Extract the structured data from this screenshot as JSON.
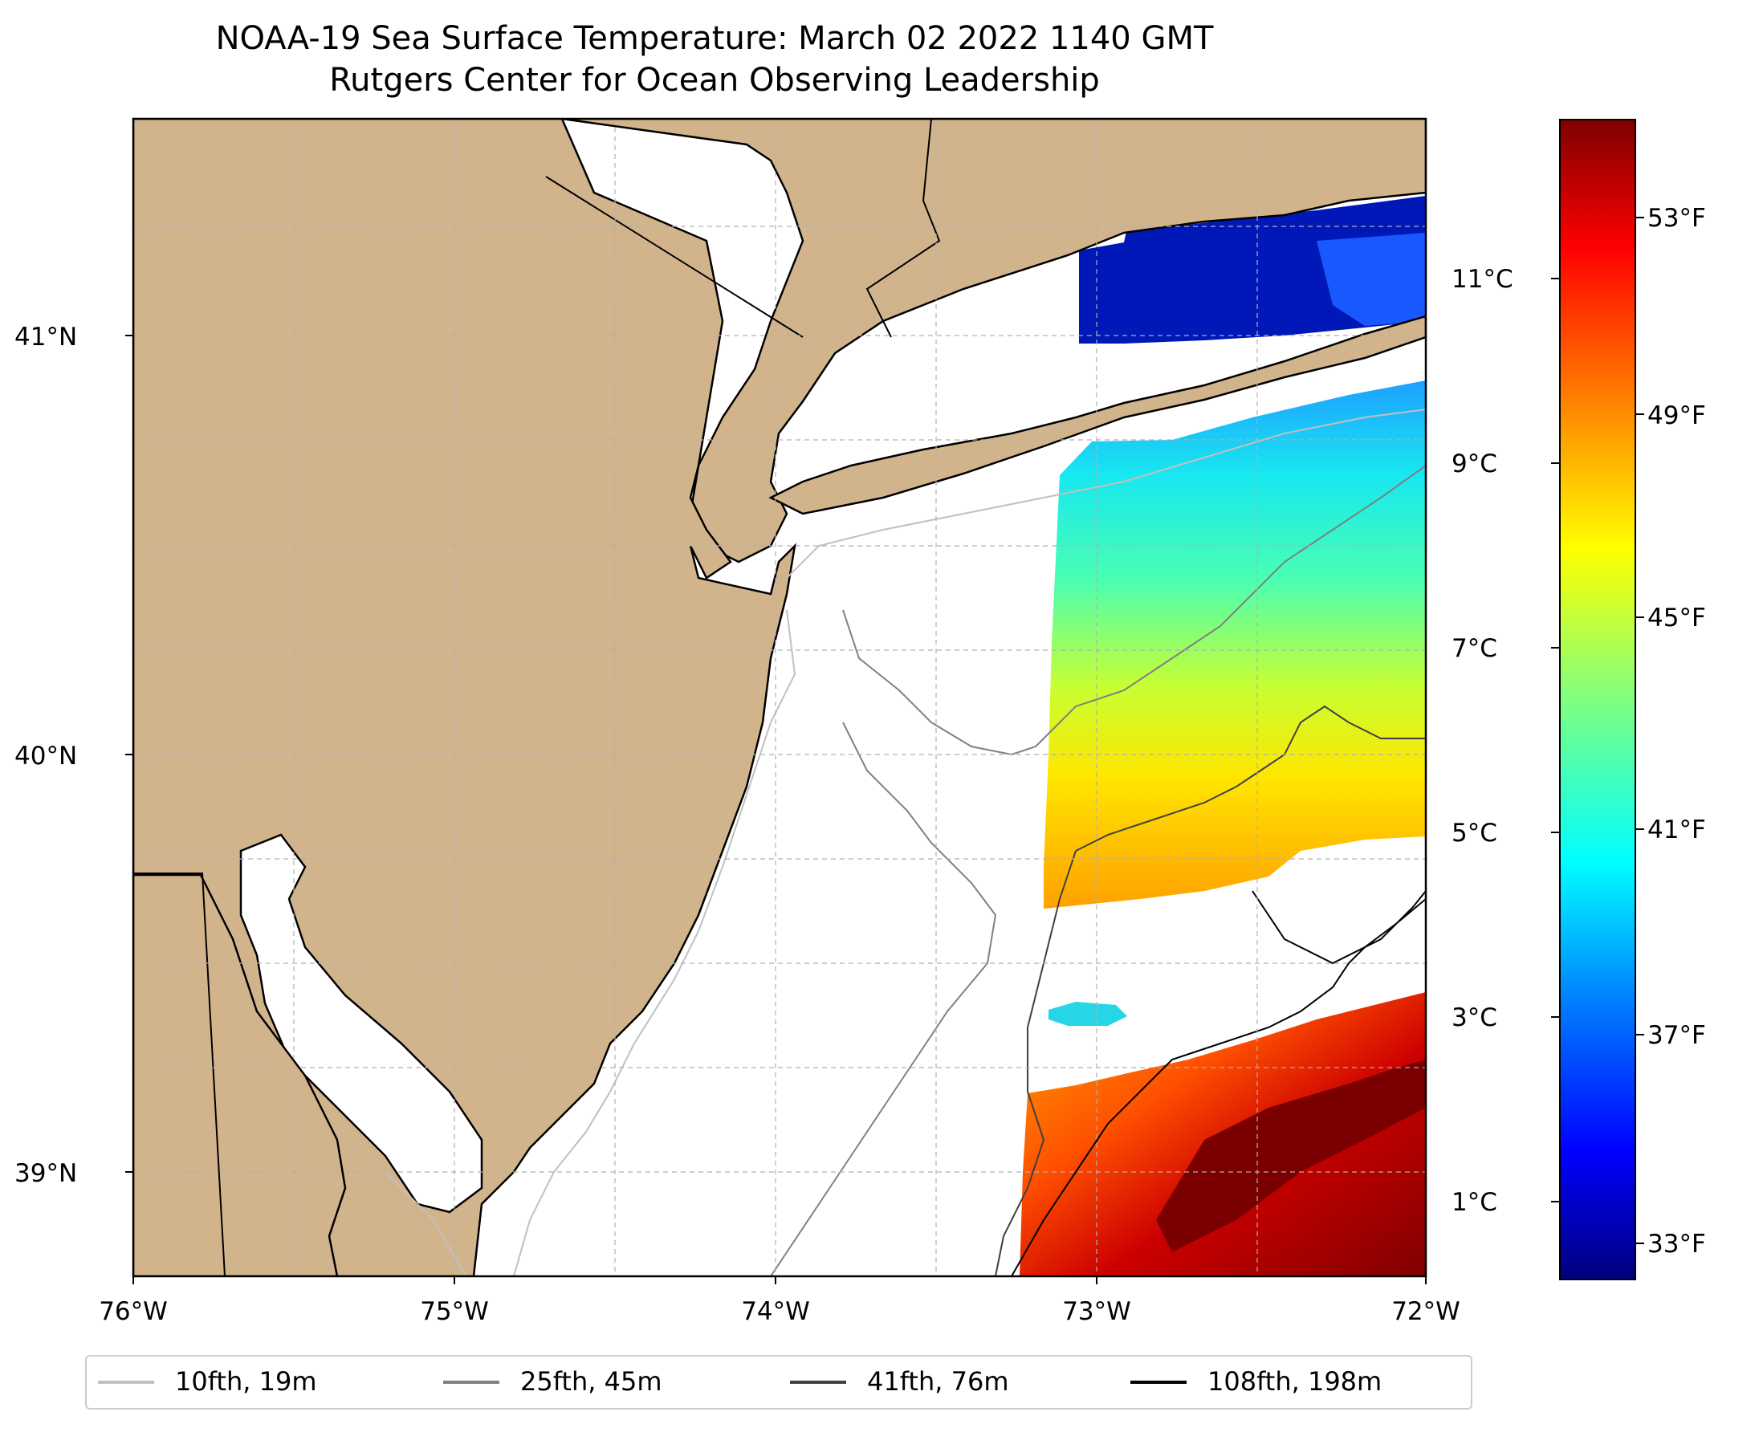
{
  "title": {
    "line1": "NOAA-19 Sea Surface Temperature: March 02 2022 1140 GMT",
    "line2": "Rutgers Center for Ocean Observing Leadership"
  },
  "map": {
    "lon_ticks": [
      "76°W",
      "75°W",
      "74°W",
      "73°W",
      "72°W"
    ],
    "lat_ticks": [
      "41°N",
      "40°N",
      "39°N"
    ],
    "land_color": "#d2b48c",
    "ocean_color": "#ffffff",
    "grid": "on, dashed light gray"
  },
  "colorbar": {
    "fahrenheit_labels": [
      "53°F",
      "49°F",
      "45°F",
      "41°F",
      "37°F",
      "33°F"
    ],
    "celsius_labels": [
      "11°C",
      "9°C",
      "7°C",
      "5°C",
      "3°C",
      "1°C"
    ],
    "colormap": "jet"
  },
  "legend": {
    "items": [
      {
        "label": "10fth, 19m",
        "color": "#c0c0c0"
      },
      {
        "label": "25fth, 45m",
        "color": "#808080"
      },
      {
        "label": "41fth, 76m",
        "color": "#404040"
      },
      {
        "label": "108fth, 198m",
        "color": "#000000"
      }
    ]
  }
}
